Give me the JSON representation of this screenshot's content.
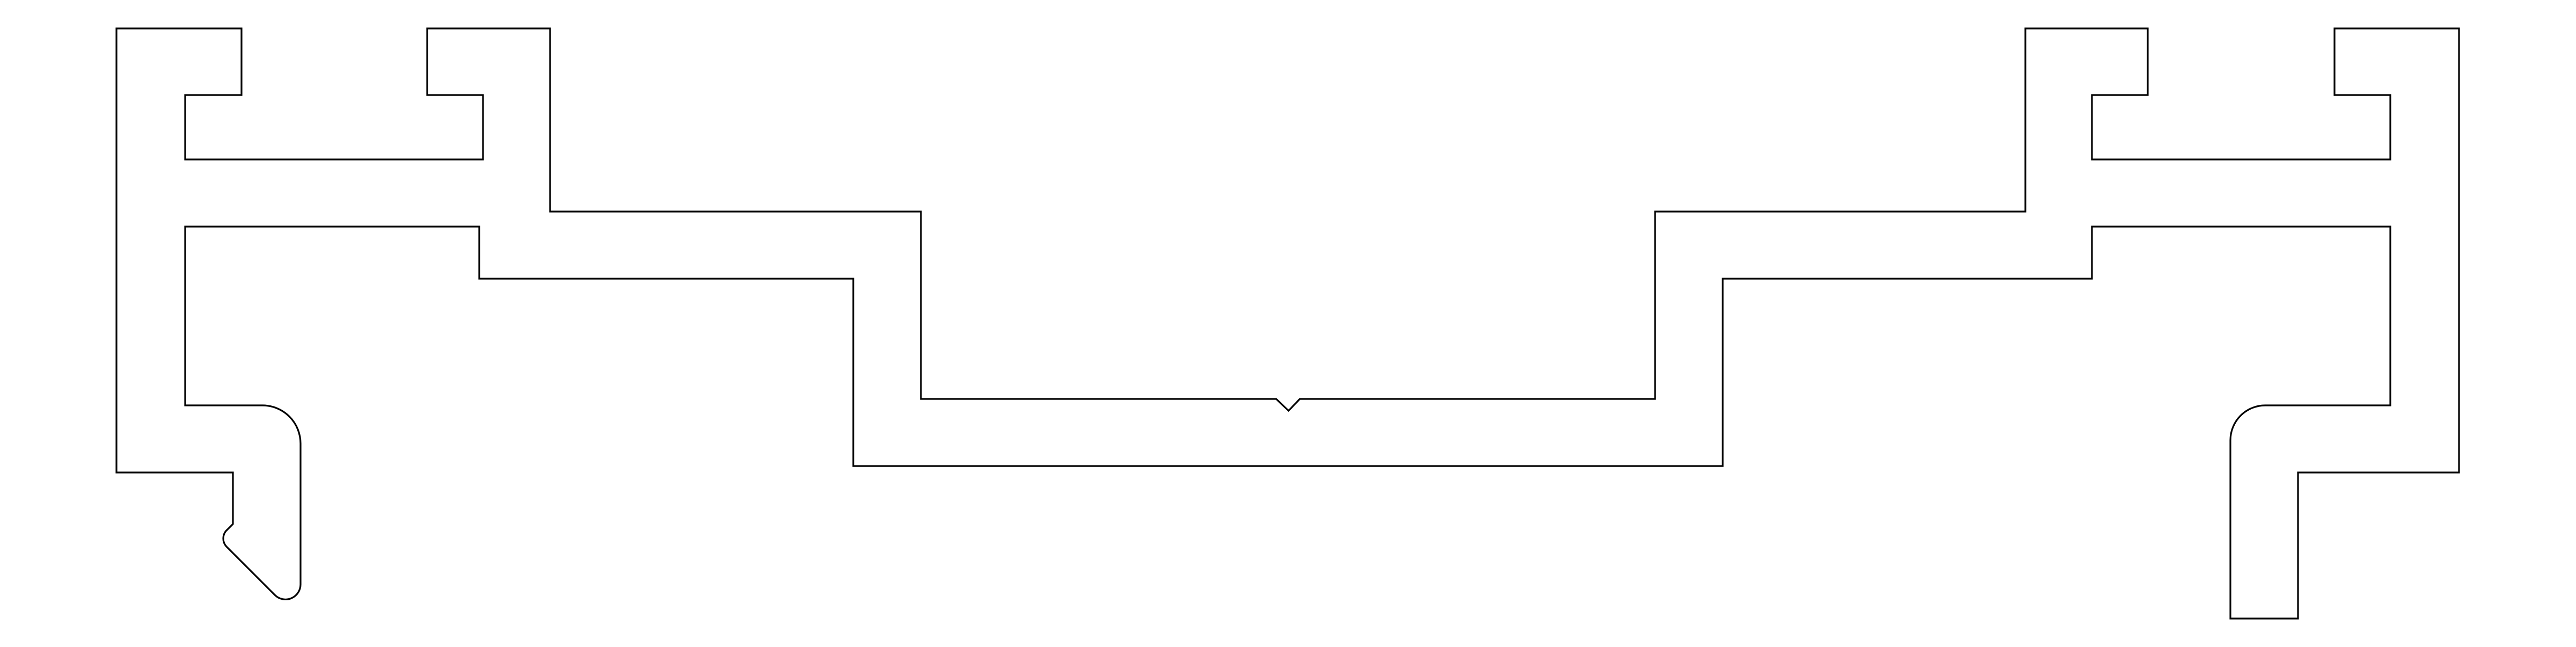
{
  "drawing": {
    "stroke_color": "#000000",
    "background_color": "#ffffff"
  }
}
